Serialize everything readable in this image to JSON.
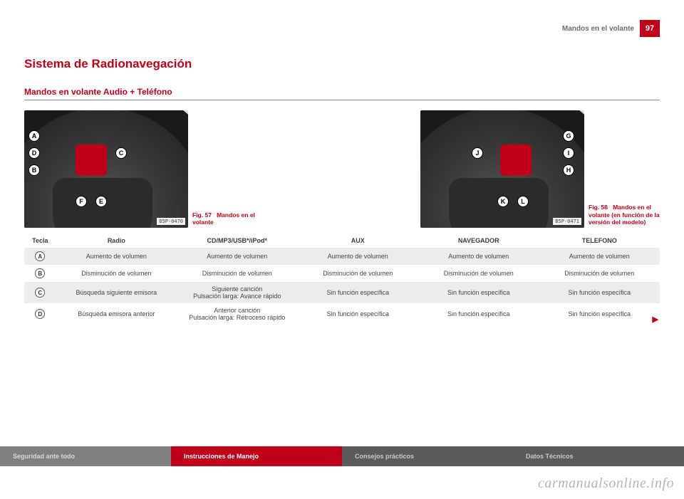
{
  "header": {
    "section": "Mandos en el volante",
    "page": "97"
  },
  "titles": {
    "section": "Sistema de Radionavegación",
    "subsection": "Mandos en volante Audio + Teléfono"
  },
  "figures": {
    "left": {
      "code": "B5P-0470",
      "caption_num": "Fig. 57",
      "caption_text": "Mandos en el volante",
      "callouts": [
        "A",
        "D",
        "B",
        "C",
        "F",
        "E"
      ]
    },
    "right": {
      "code": "B5P-0471",
      "caption_num": "Fig. 58",
      "caption_text": "Mandos en el volante (en función de la versión del modelo)",
      "callouts": [
        "J",
        "G",
        "I",
        "H",
        "K",
        "L"
      ]
    }
  },
  "table": {
    "headers": [
      "Tecla",
      "Radio",
      "CD/MP3/USB*/iPod*",
      "AUX",
      "NAVEGADOR",
      "TELEFONO"
    ],
    "rows": [
      {
        "key": "A",
        "cells": [
          "Aumento de volumen",
          "Aumento de volumen",
          "Aumento de volumen",
          "Aumento de volumen",
          "Aumento de volumen"
        ]
      },
      {
        "key": "B",
        "cells": [
          "Disminución de volumen",
          "Disminución de volumen",
          "Disminución de volumen",
          "Disminución de volumen",
          "Disminución de volumen"
        ]
      },
      {
        "key": "C",
        "cells": [
          "Búsqueda siguiente emisora",
          "Siguiente canción\nPulsación larga: Avance rápido",
          "Sin función específica",
          "Sin función específica",
          "Sin función específica"
        ]
      },
      {
        "key": "D",
        "cells": [
          "Búsqueda emisora anterior",
          "Anterior canción\nPulsación larga: Retroceso rápido",
          "Sin función específica",
          "Sin función específica",
          "Sin función específica"
        ]
      }
    ],
    "band_rows": [
      0,
      2
    ]
  },
  "footer": {
    "tabs": [
      "Seguridad ante todo",
      "Instrucciones de Manejo",
      "Consejos prácticos",
      "Datos Técnicos"
    ],
    "active_index": 1
  },
  "watermark": "carmanualsonline.info",
  "colors": {
    "accent": "#c00018",
    "grey_tab": "#808080",
    "dark_tab": "#5b5b5b",
    "band": "#ececec"
  }
}
